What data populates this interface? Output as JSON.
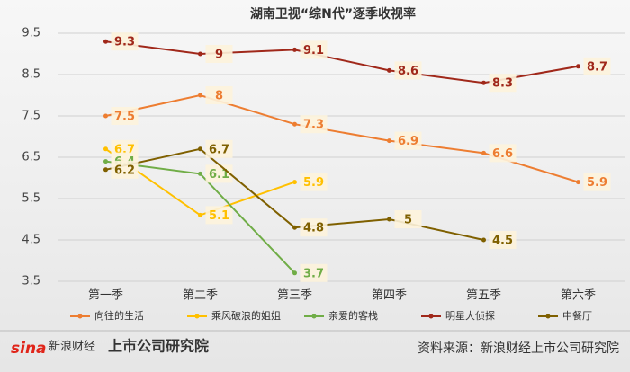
{
  "chart_data": {
    "type": "line",
    "title": "湖南卫视“综N代”逐季收视率",
    "categories": [
      "第一季",
      "第二季",
      "第三季",
      "第四季",
      "第五季",
      "第六季"
    ],
    "series": [
      {
        "name": "向往的生活",
        "color": "#ed7d31",
        "values": [
          7.5,
          8,
          7.3,
          6.9,
          6.6,
          5.9
        ]
      },
      {
        "name": "乘风破浪的姐姐",
        "color": "#ffc000",
        "values": [
          6.7,
          5.1,
          5.9,
          null,
          null,
          null
        ]
      },
      {
        "name": "亲爱的客栈",
        "color": "#70ad47",
        "values": [
          6.4,
          6.1,
          3.7,
          null,
          null,
          null
        ]
      },
      {
        "name": "明星大侦探",
        "color": "#a0281a",
        "values": [
          9.3,
          9,
          9.1,
          8.6,
          8.3,
          8.7
        ]
      },
      {
        "name": "中餐厅",
        "color": "#7f6000",
        "values": [
          6.2,
          6.7,
          4.8,
          5,
          4.5,
          null
        ]
      }
    ],
    "ylim": [
      3.5,
      9.5
    ],
    "yticks": [
      3.5,
      4.5,
      5.5,
      6.5,
      7.5,
      8.5,
      9.5
    ],
    "grid": true,
    "legend": "bottom",
    "source": "资料来源：新浪财经上市公司研究院",
    "branding": [
      "sina",
      "新浪财经",
      "上市公司研究院"
    ]
  }
}
